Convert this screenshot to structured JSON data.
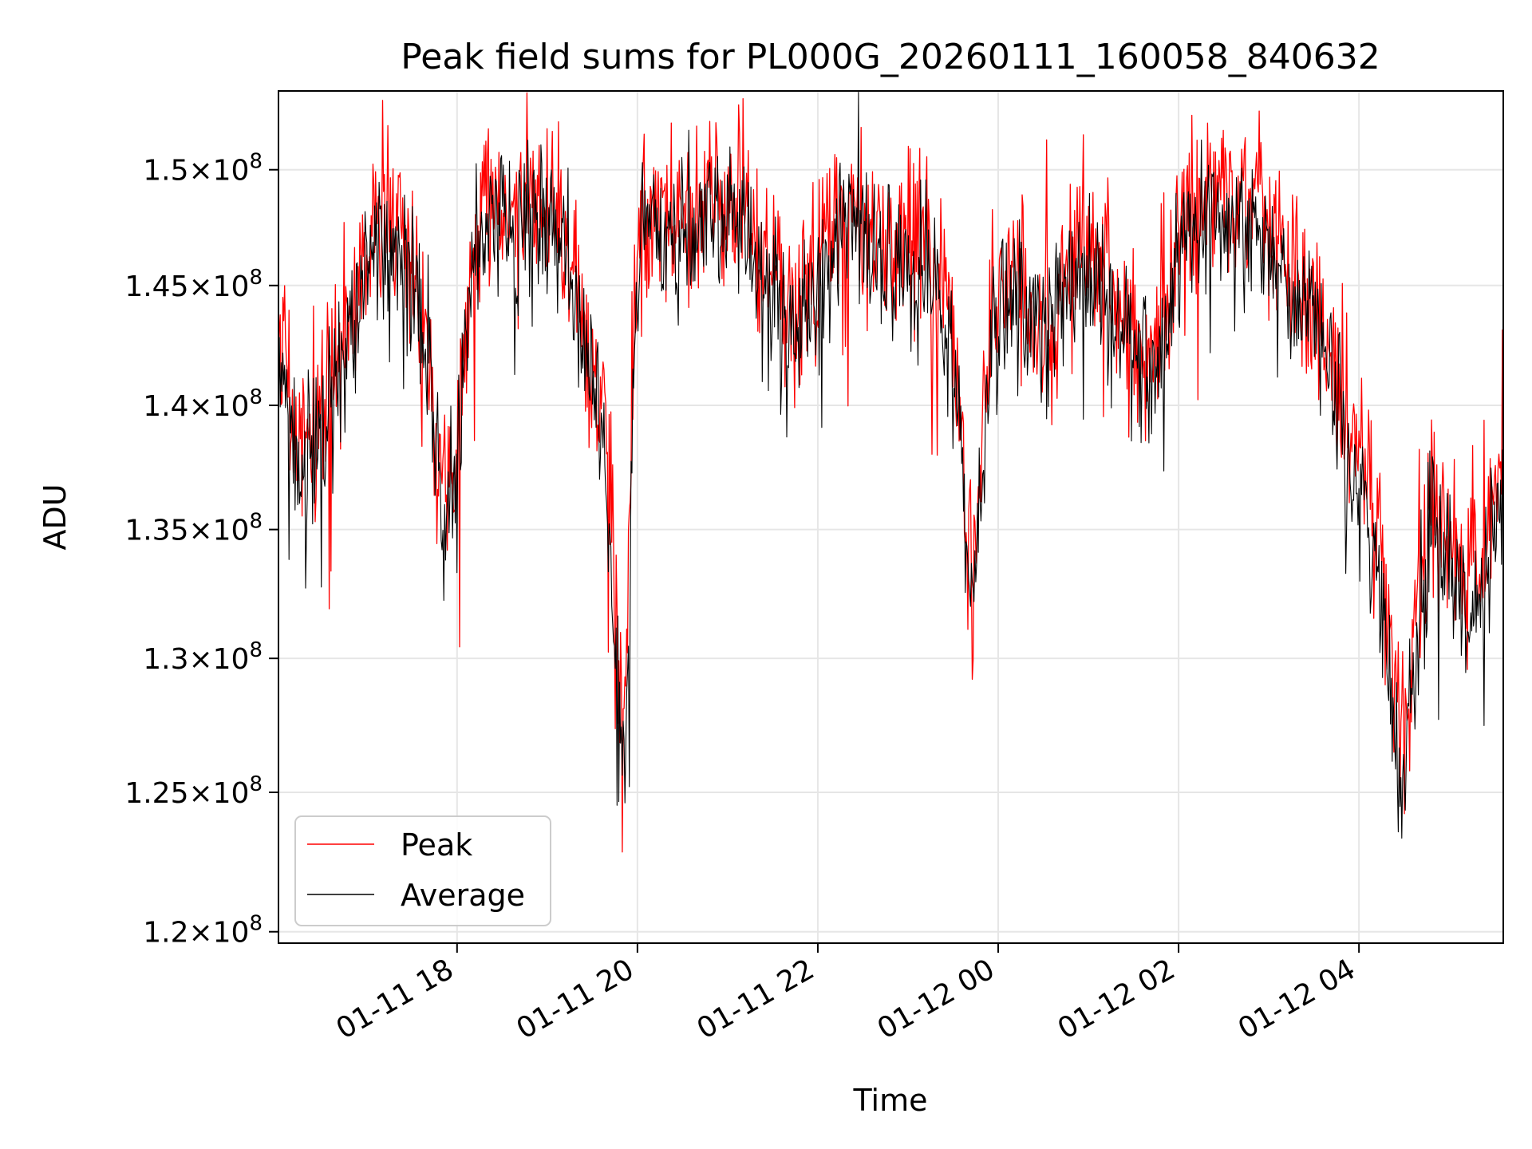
{
  "chart_data": {
    "type": "line",
    "title": "Peak field sums for PL000G_20260111_160058_840632",
    "xlabel": "Time",
    "ylabel": "ADU",
    "yscale": "log",
    "xlim_hours": [
      16.02,
      29.6
    ],
    "ylim": [
      119600000,
      153500000
    ],
    "grid": true,
    "x_ticks": [
      {
        "label": "01-11 18",
        "hours": 18
      },
      {
        "label": "01-11 20",
        "hours": 20
      },
      {
        "label": "01-11 22",
        "hours": 22
      },
      {
        "label": "01-12 00",
        "hours": 24
      },
      {
        "label": "01-12 02",
        "hours": 26
      },
      {
        "label": "01-12 04",
        "hours": 28
      }
    ],
    "y_ticks": [
      {
        "mantissa": "1.2",
        "exponent": "8",
        "value": 120000000
      },
      {
        "mantissa": "1.25",
        "exponent": "8",
        "value": 125000000
      },
      {
        "mantissa": "1.3",
        "exponent": "8",
        "value": 130000000
      },
      {
        "mantissa": "1.35",
        "exponent": "8",
        "value": 135000000
      },
      {
        "mantissa": "1.4",
        "exponent": "8",
        "value": 140000000
      },
      {
        "mantissa": "1.45",
        "exponent": "8",
        "value": 145000000
      },
      {
        "mantissa": "1.5",
        "exponent": "8",
        "value": 150000000
      }
    ],
    "legend": {
      "position": "lower-left",
      "entries": [
        {
          "name": "Peak",
          "color": "#ff0000"
        },
        {
          "name": "Average",
          "color": "#000000"
        }
      ]
    },
    "series": [
      {
        "name": "Peak",
        "color": "#ff0000",
        "trend_hours": [
          16.02,
          16.2,
          16.4,
          16.6,
          16.8,
          17.0,
          17.2,
          17.4,
          17.55,
          17.7,
          17.8,
          17.9,
          18.0,
          18.15,
          18.3,
          18.5,
          18.7,
          18.9,
          19.1,
          19.3,
          19.5,
          19.65,
          19.75,
          19.8,
          19.85,
          19.9,
          19.95,
          20.05,
          20.2,
          20.4,
          20.6,
          20.8,
          21.0,
          21.2,
          21.4,
          21.6,
          21.8,
          22.0,
          22.2,
          22.4,
          22.6,
          22.8,
          23.0,
          23.2,
          23.4,
          23.55,
          23.65,
          23.75,
          23.85,
          23.95,
          24.1,
          24.3,
          24.5,
          24.7,
          24.9,
          25.1,
          25.3,
          25.5,
          25.7,
          25.9,
          26.1,
          26.3,
          26.5,
          26.7,
          26.9,
          27.1,
          27.3,
          27.5,
          27.7,
          27.9,
          28.1,
          28.25,
          28.35,
          28.45,
          28.55,
          28.65,
          28.8,
          29.0,
          29.2,
          29.4,
          29.6
        ],
        "trend_values": [
          143000000,
          139000000,
          138000000,
          141000000,
          144000000,
          147500000,
          148000000,
          147000000,
          145000000,
          141000000,
          138000000,
          137000000,
          139000000,
          146000000,
          148000000,
          148500000,
          148500000,
          148000000,
          147500000,
          145500000,
          142000000,
          138000000,
          133000000,
          129000000,
          127000000,
          133000000,
          142000000,
          148500000,
          148500000,
          148000000,
          148000000,
          148500000,
          148500000,
          148000000,
          146000000,
          145000000,
          144000000,
          146000000,
          148000000,
          148000000,
          147000000,
          147000000,
          147000000,
          146500000,
          145000000,
          141000000,
          135000000,
          134000000,
          140000000,
          144000000,
          145000000,
          144500000,
          143500000,
          145000000,
          147000000,
          146500000,
          144000000,
          143000000,
          142000000,
          145000000,
          148000000,
          149000000,
          149000000,
          149000000,
          148000000,
          146500000,
          145500000,
          144500000,
          142000000,
          139000000,
          137000000,
          134000000,
          130000000,
          126000000,
          128000000,
          132000000,
          136000000,
          134000000,
          133000000,
          134000000,
          138000000
        ],
        "noise_amplitude": 1800000
      },
      {
        "name": "Average",
        "color": "#000000",
        "trend_hours": [
          16.02,
          16.2,
          16.4,
          16.6,
          16.8,
          17.0,
          17.2,
          17.4,
          17.55,
          17.7,
          17.8,
          17.9,
          18.0,
          18.15,
          18.3,
          18.5,
          18.7,
          18.9,
          19.1,
          19.3,
          19.5,
          19.65,
          19.75,
          19.8,
          19.85,
          19.9,
          19.95,
          20.05,
          20.2,
          20.4,
          20.6,
          20.8,
          21.0,
          21.2,
          21.4,
          21.6,
          21.8,
          22.0,
          22.2,
          22.4,
          22.6,
          22.8,
          23.0,
          23.2,
          23.4,
          23.55,
          23.65,
          23.75,
          23.85,
          23.95,
          24.1,
          24.3,
          24.5,
          24.7,
          24.9,
          25.1,
          25.3,
          25.5,
          25.7,
          25.9,
          26.1,
          26.3,
          26.5,
          26.7,
          26.9,
          27.1,
          27.3,
          27.5,
          27.7,
          27.9,
          28.1,
          28.25,
          28.35,
          28.45,
          28.55,
          28.65,
          28.8,
          29.0,
          29.2,
          29.4,
          29.6
        ],
        "trend_values": [
          142000000,
          138000000,
          137000000,
          140000000,
          143000000,
          146500000,
          147000000,
          146000000,
          144000000,
          140000000,
          137000000,
          135500000,
          138000000,
          145000000,
          147500000,
          148000000,
          147500000,
          147500000,
          147000000,
          144500000,
          141000000,
          136500000,
          131000000,
          127000000,
          125000000,
          131000000,
          141000000,
          147500000,
          148000000,
          147500000,
          147500000,
          148000000,
          148000000,
          147500000,
          145000000,
          144000000,
          143000000,
          145000000,
          147000000,
          147500000,
          146000000,
          146000000,
          146000000,
          145500000,
          144000000,
          140000000,
          134000000,
          133000000,
          139000000,
          143000000,
          144000000,
          143500000,
          142500000,
          144000000,
          146000000,
          145500000,
          143000000,
          142000000,
          141000000,
          144000000,
          147000000,
          148000000,
          148000000,
          148000000,
          147000000,
          145500000,
          144500000,
          143500000,
          141000000,
          138000000,
          135500000,
          132500000,
          128500000,
          124500000,
          127000000,
          131000000,
          135000000,
          133000000,
          132000000,
          133000000,
          137000000
        ],
        "noise_amplitude": 1600000
      }
    ]
  }
}
